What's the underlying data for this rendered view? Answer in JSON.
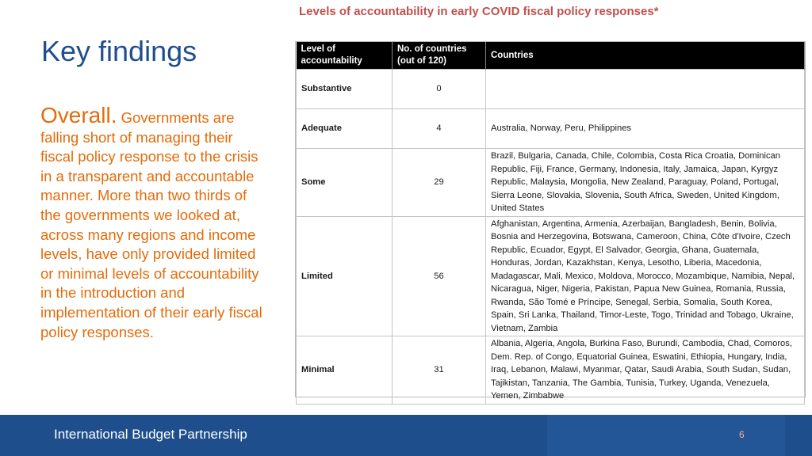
{
  "slide": {
    "title": "Key findings",
    "overall_label": "Overall.",
    "body": "Governments are falling short of managing their fiscal policy response to the crisis in a transparent and accountable manner. More than two thirds of the governments we looked at, across many regions and income levels, have only provided limited or minimal levels of accountability in the introduction and implementation of their early fiscal policy responses."
  },
  "table": {
    "title": "Levels of accountability in early COVID fiscal policy responses*",
    "headers": {
      "level": "Level of accountability",
      "count": "No. of countries (out of 120)",
      "countries": "Countries"
    },
    "rows": [
      {
        "level": "Substantive",
        "count": "0",
        "countries": ""
      },
      {
        "level": "Adequate",
        "count": "4",
        "countries": "Australia, Norway, Peru, Philippines"
      },
      {
        "level": "Some",
        "count": "29",
        "countries": "Brazil, Bulgaria, Canada, Chile, Colombia, Costa Rica Croatia, Dominican Republic, Fiji, France, Germany, Indonesia, Italy, Jamaica, Japan, Kyrgyz Republic, Malaysia, Mongolia, New Zealand, Paraguay, Poland, Portugal, Sierra Leone, Slovakia, Slovenia, South Africa, Sweden, United Kingdom, United States"
      },
      {
        "level": "Limited",
        "count": "56",
        "countries": "Afghanistan, Argentina, Armenia, Azerbaijan, Bangladesh, Benin, Bolivia, Bosnia and Herzegovina, Botswana, Cameroon, China, Côte d'Ivoire, Czech Republic, Ecuador, Egypt, El Salvador, Georgia, Ghana, Guatemala, Honduras, Jordan, Kazakhstan, Kenya, Lesotho, Liberia, Macedonia, Madagascar, Mali, Mexico, Moldova, Morocco, Mozambique, Namibia, Nepal, Nicaragua, Niger, Nigeria, Pakistan, Papua New Guinea, Romania, Russia, Rwanda, São Tomé e Príncipe, Senegal, Serbia, Somalia, South Korea, Spain, Sri Lanka, Thailand, Timor-Leste, Togo, Trinidad and Tobago, Ukraine, Vietnam, Zambia"
      },
      {
        "level": "Minimal",
        "count": "31",
        "countries": "Albania, Algeria, Angola, Burkina Faso, Burundi, Cambodia, Chad, Comoros, Dem. Rep. of Congo, Equatorial Guinea, Eswatini, Ethiopia, Hungary, India, Iraq, Lebanon, Malawi, Myanmar, Qatar, Saudi Arabia, South Sudan, Sudan, Tajikistan, Tanzania, The Gambia, Tunisia, Turkey, Uganda, Venezuela, Yemen, Zimbabwe"
      }
    ]
  },
  "footer": {
    "org_name": "International Budget Partnership",
    "page_number": "6"
  }
}
